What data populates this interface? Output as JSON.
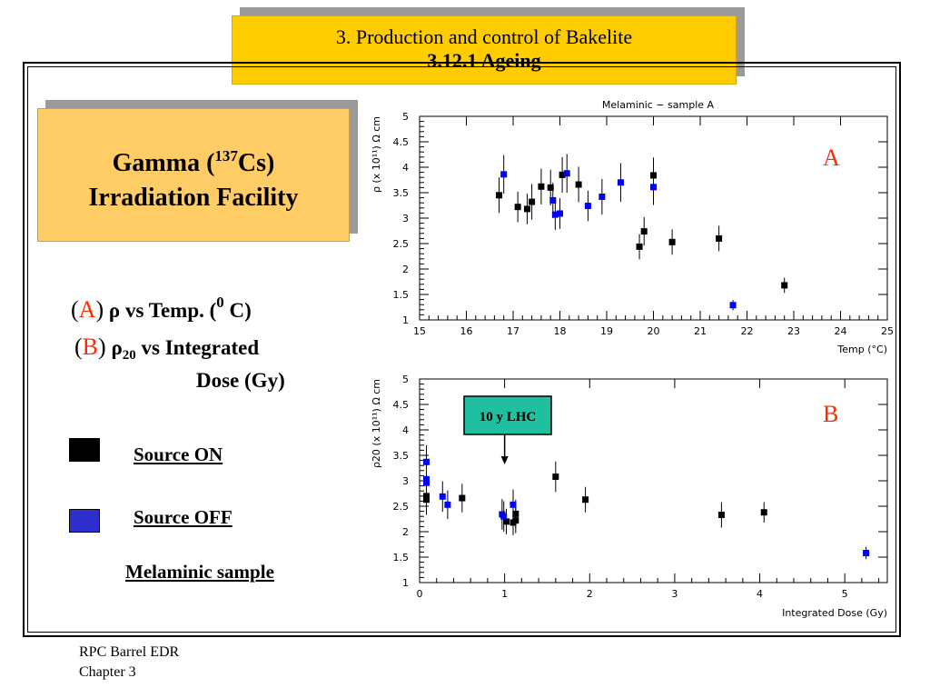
{
  "header": {
    "line1": "3. Production and control of  Bakelite",
    "line2": "3.12.1 Ageing"
  },
  "gamma_box": {
    "line1_pre": "Gamma (",
    "superscript": "137",
    "line1_post": "Cs)",
    "line2": "Irradiation Facility"
  },
  "legend_text": {
    "a_paren_open": "(",
    "a_letter": "A",
    "a_paren_close": ")",
    "a_rho": "ρ",
    "a_text": "  vs Temp. (",
    "a_sup": "0",
    "a_text2": " C)",
    "b_paren_open": "(",
    "b_letter": "B",
    "b_paren_close": ")",
    "b_rho": "ρ",
    "b_sub": "20",
    "b_text": "  vs  Integrated",
    "b_text2": "Dose (Gy)"
  },
  "source_legend": {
    "on_label": "Source ON",
    "off_label": "Source OFF",
    "sample_label": "Melaminic sample",
    "on_color": "#000000",
    "off_color": "#2e2ecc"
  },
  "footer": {
    "line1": "RPC Barrel EDR",
    "line2": "Chapter 3"
  },
  "colors": {
    "title_bg": "#ffcc00",
    "gamma_bg": "#ffcc66",
    "marker_on": "#000000",
    "marker_off": "#0000ff",
    "panel_letter": "#ff2a00",
    "lhc_box": "#1fbf9f"
  },
  "chart_data": [
    {
      "type": "scatter",
      "title": "Melaminic − sample A",
      "panel_label": "A",
      "xlabel": "Temp (°C)",
      "ylabel": "ρ (x 10¹¹) Ω cm",
      "xlim": [
        15,
        25
      ],
      "ylim": [
        1,
        5
      ],
      "x_ticks": [
        "15",
        "16",
        "17",
        "18",
        "19",
        "20",
        "21",
        "22",
        "23",
        "24",
        "25"
      ],
      "y_ticks": [
        "1",
        "1.5",
        "2",
        "2.5",
        "3",
        "3.5",
        "4",
        "4.5",
        "5"
      ],
      "series": [
        {
          "name": "Source ON",
          "points": [
            {
              "x": 16.7,
              "y": 3.45,
              "err": 0.35
            },
            {
              "x": 17.1,
              "y": 3.22,
              "err": 0.3
            },
            {
              "x": 17.3,
              "y": 3.18,
              "err": 0.3
            },
            {
              "x": 17.4,
              "y": 3.32,
              "err": 0.35
            },
            {
              "x": 17.6,
              "y": 3.62,
              "err": 0.35
            },
            {
              "x": 17.8,
              "y": 3.6,
              "err": 0.35
            },
            {
              "x": 18.05,
              "y": 3.85,
              "err": 0.35
            },
            {
              "x": 18.4,
              "y": 3.66,
              "err": 0.35
            },
            {
              "x": 19.7,
              "y": 2.44,
              "err": 0.25
            },
            {
              "x": 19.8,
              "y": 2.74,
              "err": 0.28
            },
            {
              "x": 20.0,
              "y": 3.84,
              "err": 0.35
            },
            {
              "x": 20.4,
              "y": 2.53,
              "err": 0.25
            },
            {
              "x": 21.4,
              "y": 2.6,
              "err": 0.25
            },
            {
              "x": 22.8,
              "y": 1.68,
              "err": 0.15
            }
          ]
        },
        {
          "name": "Source OFF",
          "points": [
            {
              "x": 16.8,
              "y": 3.86,
              "err": 0.38
            },
            {
              "x": 17.85,
              "y": 3.35,
              "err": 0.35
            },
            {
              "x": 17.9,
              "y": 3.07,
              "err": 0.3
            },
            {
              "x": 18.0,
              "y": 3.09,
              "err": 0.3
            },
            {
              "x": 18.15,
              "y": 3.88,
              "err": 0.38
            },
            {
              "x": 18.6,
              "y": 3.24,
              "err": 0.3
            },
            {
              "x": 18.9,
              "y": 3.42,
              "err": 0.35
            },
            {
              "x": 19.3,
              "y": 3.7,
              "err": 0.38
            },
            {
              "x": 20.0,
              "y": 3.61,
              "err": 0.35
            },
            {
              "x": 21.7,
              "y": 1.29,
              "err": 0.1
            }
          ]
        }
      ]
    },
    {
      "type": "scatter",
      "title": "",
      "panel_label": "B",
      "xlabel": "Integrated Dose (Gy)",
      "ylabel": "ρ20 (x 10¹¹) Ω cm",
      "xlim": [
        0,
        5.5
      ],
      "ylim": [
        1,
        5
      ],
      "x_ticks": [
        "0",
        "1",
        "2",
        "3",
        "4",
        "5"
      ],
      "y_ticks": [
        "1",
        "1.5",
        "2",
        "2.5",
        "3",
        "3.5",
        "4",
        "4.5",
        "5"
      ],
      "annotation": {
        "text": "10 y LHC",
        "x": 1.0
      },
      "series": [
        {
          "name": "Source ON",
          "points": [
            {
              "x": 0.08,
              "y": 2.63,
              "err": 0.3
            },
            {
              "x": 0.08,
              "y": 2.7,
              "err": 0.3
            },
            {
              "x": 0.5,
              "y": 2.66,
              "err": 0.28
            },
            {
              "x": 1.02,
              "y": 2.2,
              "err": 0.25
            },
            {
              "x": 1.1,
              "y": 2.18,
              "err": 0.25
            },
            {
              "x": 1.13,
              "y": 2.35,
              "err": 0.28
            },
            {
              "x": 1.13,
              "y": 2.22,
              "err": 0.25
            },
            {
              "x": 1.6,
              "y": 3.08,
              "err": 0.3
            },
            {
              "x": 1.95,
              "y": 2.63,
              "err": 0.25
            },
            {
              "x": 3.55,
              "y": 2.33,
              "err": 0.25
            },
            {
              "x": 4.05,
              "y": 2.38,
              "err": 0.2
            }
          ]
        },
        {
          "name": "Source OFF",
          "points": [
            {
              "x": 0.08,
              "y": 3.37,
              "err": 0.33
            },
            {
              "x": 0.08,
              "y": 3.03,
              "err": 0.3
            },
            {
              "x": 0.08,
              "y": 2.96,
              "err": 0.3
            },
            {
              "x": 0.27,
              "y": 2.69,
              "err": 0.3
            },
            {
              "x": 0.33,
              "y": 2.53,
              "err": 0.28
            },
            {
              "x": 0.97,
              "y": 2.34,
              "err": 0.3
            },
            {
              "x": 0.99,
              "y": 2.3,
              "err": 0.3
            },
            {
              "x": 1.1,
              "y": 2.53,
              "err": 0.3
            },
            {
              "x": 5.25,
              "y": 1.58,
              "err": 0.12
            }
          ]
        }
      ]
    }
  ]
}
